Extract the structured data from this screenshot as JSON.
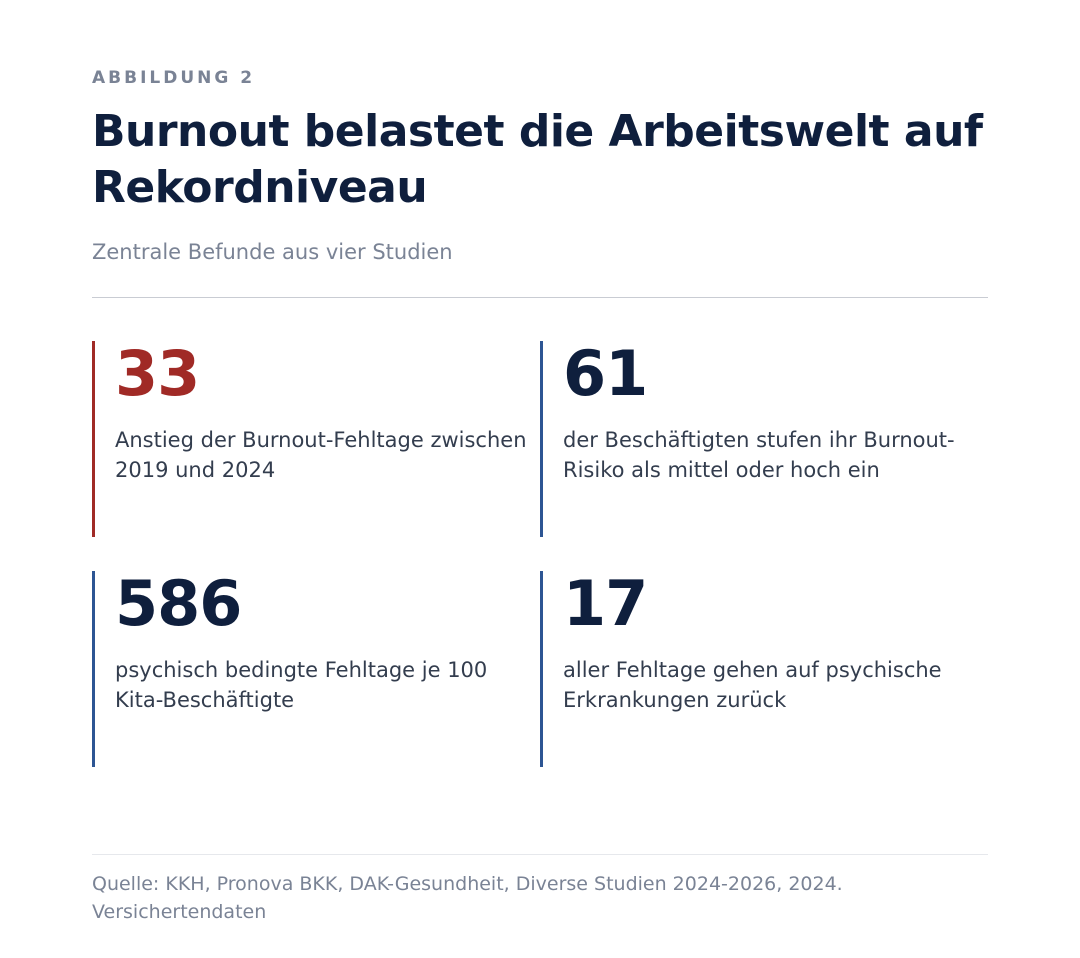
{
  "header": {
    "eyebrow": "ABBILDUNG 2",
    "title": "Burnout belastet die Arbeitswelt auf Rekordniveau",
    "subtitle": "Zentrale Befunde aus vier Studien"
  },
  "stats": [
    {
      "value": "33",
      "description": "Anstieg der Burnout-Fehltage zwischen 2019 und 2024",
      "accent_color": "#a02a26"
    },
    {
      "value": "61",
      "description": "der Beschäftigten stufen ihr Burnout-Risiko als mittel oder hoch ein",
      "accent_color": "#2d5593"
    },
    {
      "value": "586",
      "description": "psychisch bedingte Fehltage je 100 Kita-Beschäftigte",
      "accent_color": "#2d5593"
    },
    {
      "value": "17",
      "description": "aller Fehltage gehen auf psychische Erkrankungen zurück",
      "accent_color": "#2d5593"
    }
  ],
  "footer": {
    "source": "Quelle: KKH, Pronova BKK, DAK-Gesundheit, Diverse Studien 2024-2026, 2024. Versichertendaten"
  }
}
